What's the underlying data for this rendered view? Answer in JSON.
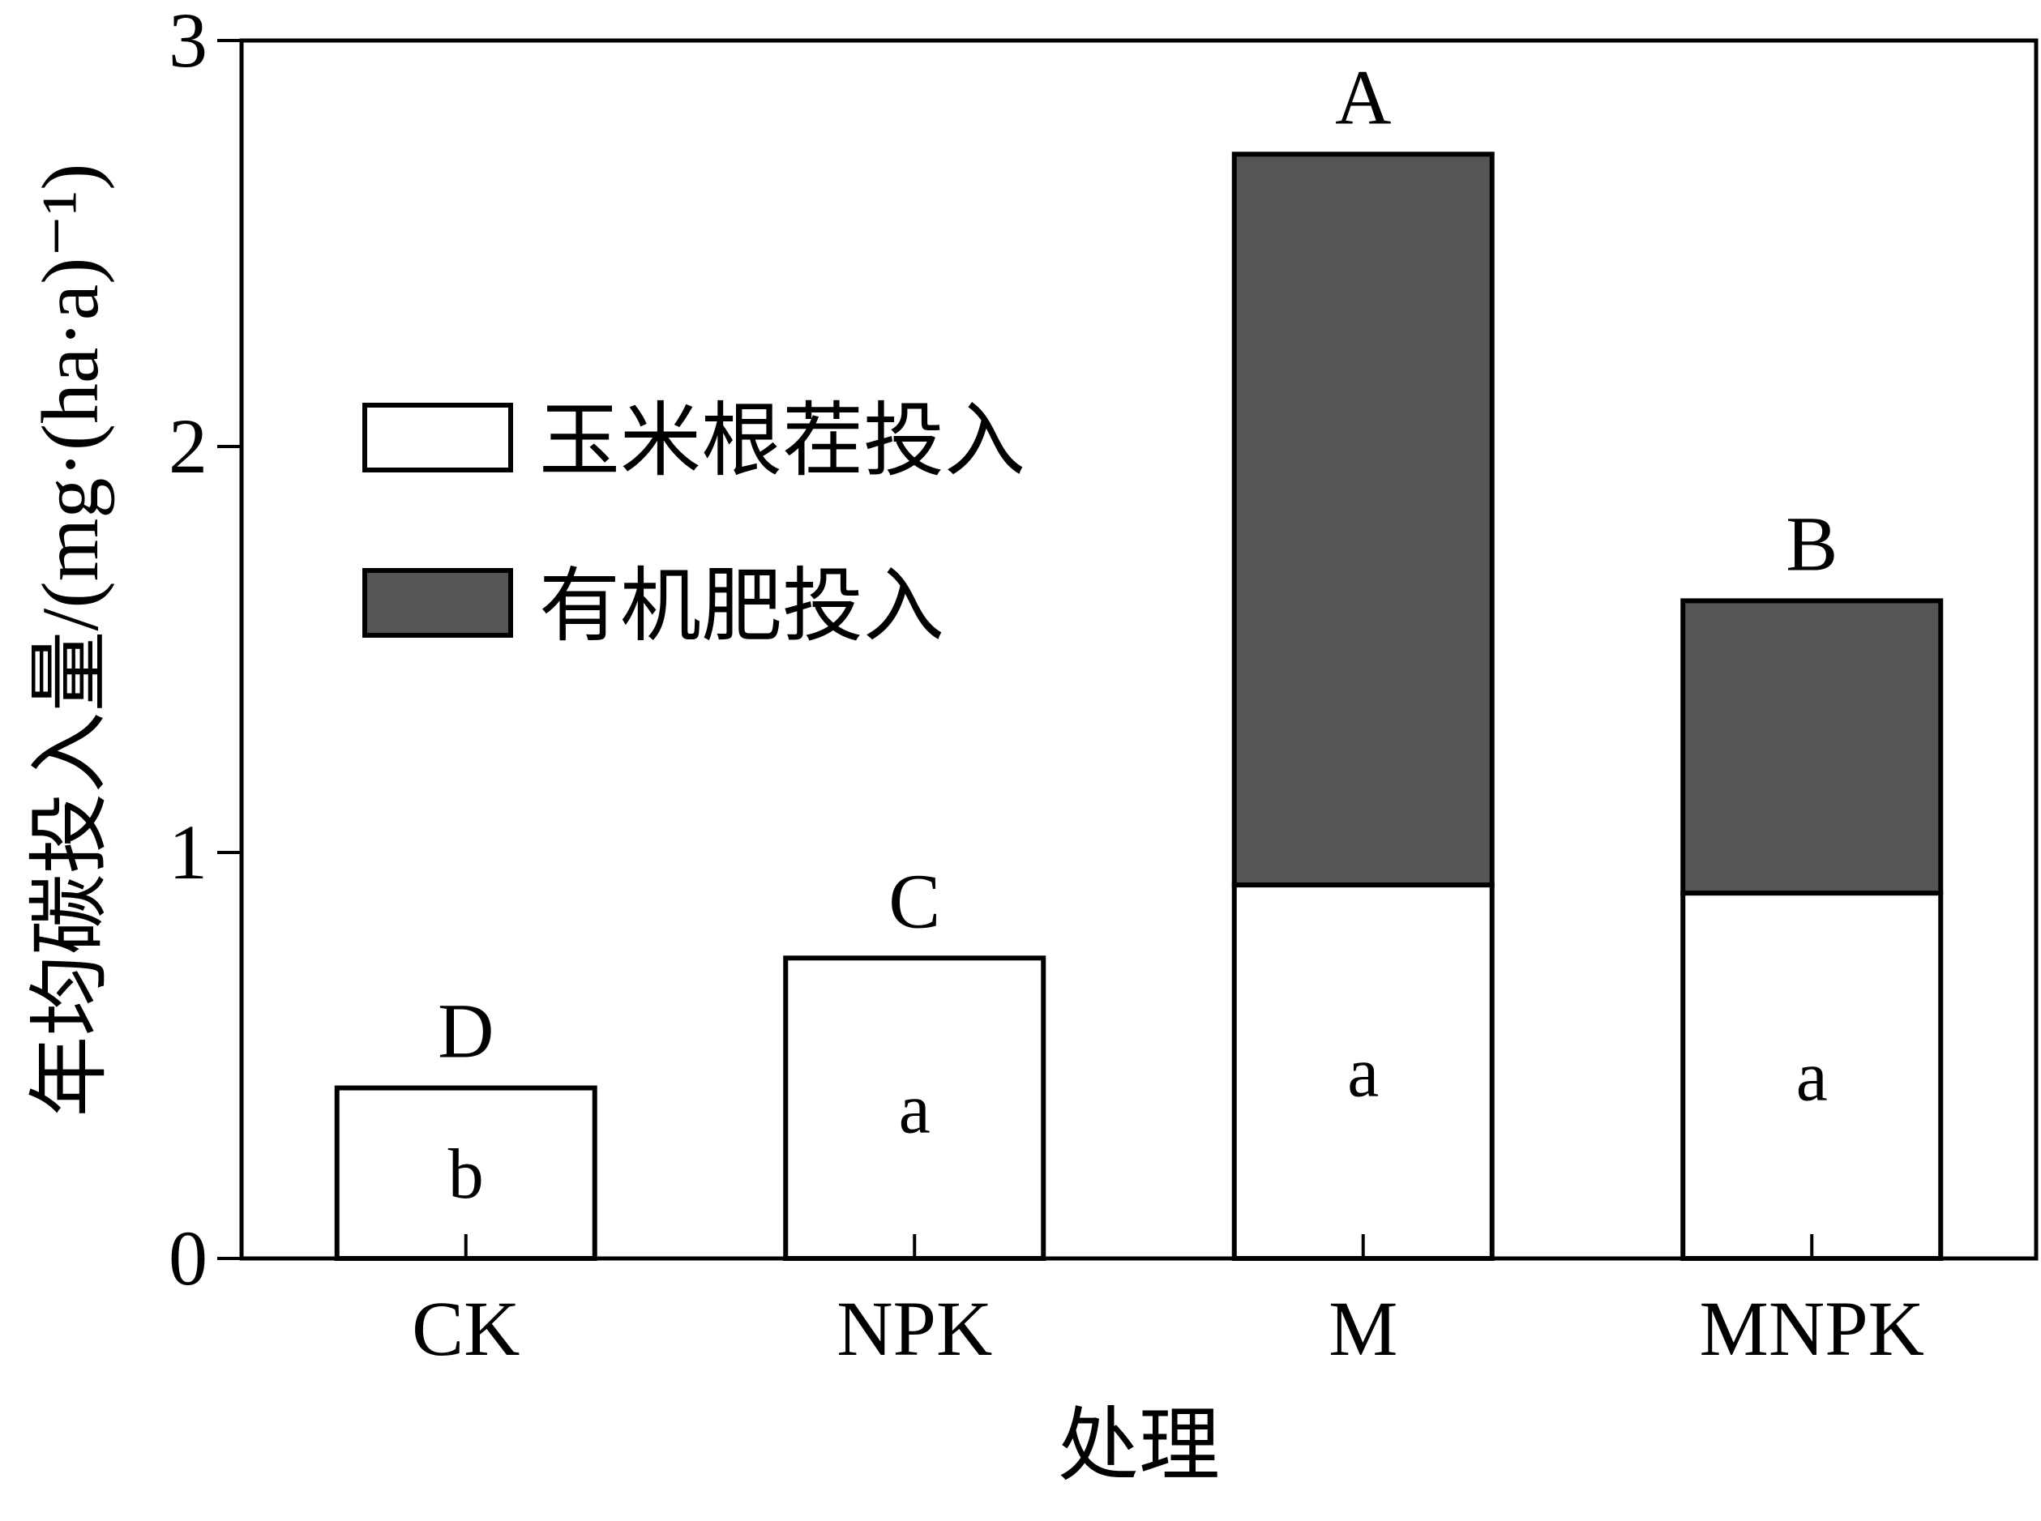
{
  "chart_data": {
    "type": "bar",
    "stacked": true,
    "categories": [
      "CK",
      "NPK",
      "M",
      "MNPK"
    ],
    "series": [
      {
        "name": "玉米根茬投入",
        "values": [
          0.42,
          0.74,
          0.92,
          0.9
        ],
        "color": "#ffffff"
      },
      {
        "name": "有机肥投入",
        "values": [
          0,
          0,
          1.8,
          0.72
        ],
        "color": "#555555"
      }
    ],
    "group_labels": [
      "D",
      "C",
      "A",
      "B"
    ],
    "inner_labels": [
      "b",
      "a",
      "a",
      "a"
    ],
    "xlabel": "处理",
    "ylabel": "年均碳投入量/(mg·(ha·a)⁻¹)",
    "ylim": [
      0,
      3
    ],
    "yticks": [
      "0",
      "1",
      "2",
      "3"
    ],
    "grid": false,
    "legend_position": "upper-left"
  }
}
